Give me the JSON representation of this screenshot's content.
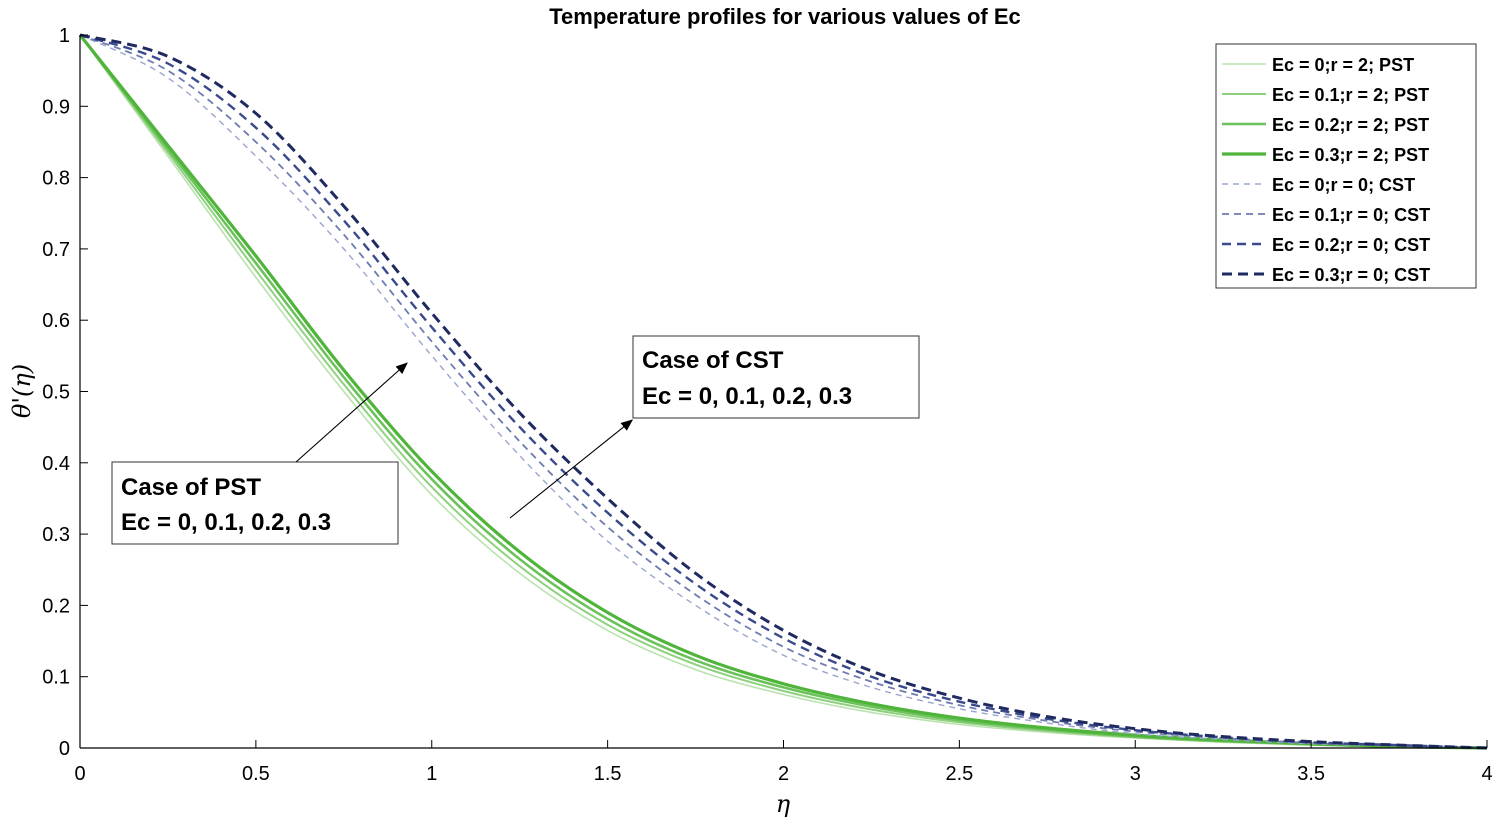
{
  "chart_data": {
    "type": "line",
    "title": "Temperature profiles for various values of Ec",
    "xlabel": "η",
    "ylabel": "θ'(η)",
    "xlim": [
      0,
      4
    ],
    "ylim": [
      0,
      1
    ],
    "xticks": [
      "0",
      "0.5",
      "1",
      "1.5",
      "2",
      "2.5",
      "3",
      "3.5",
      "4"
    ],
    "yticks": [
      "0",
      "0.1",
      "0.2",
      "0.3",
      "0.4",
      "0.5",
      "0.6",
      "0.7",
      "0.8",
      "0.9",
      "1"
    ],
    "grid": false,
    "legend_position": "top-right",
    "x": [
      0,
      0.25,
      0.5,
      0.75,
      1.0,
      1.25,
      1.5,
      1.75,
      2.0,
      2.25,
      2.5,
      2.75,
      3.0,
      3.25,
      3.5,
      3.75,
      4.0
    ],
    "series": [
      {
        "name": "Ec = 0;r = 2; PST",
        "color": "#b9e2ae",
        "style": "solid",
        "values": [
          1,
          0.83,
          0.66,
          0.5,
          0.355,
          0.245,
          0.165,
          0.11,
          0.075,
          0.05,
          0.033,
          0.022,
          0.014,
          0.008,
          0.004,
          0.002,
          0
        ]
      },
      {
        "name": "Ec = 0.1;r = 2; PST",
        "color": "#8fd07f",
        "style": "solid",
        "values": [
          1,
          0.835,
          0.67,
          0.51,
          0.366,
          0.255,
          0.173,
          0.117,
          0.08,
          0.054,
          0.036,
          0.024,
          0.015,
          0.009,
          0.005,
          0.002,
          0
        ]
      },
      {
        "name": "Ec = 0.2;r = 2; PST",
        "color": "#6cc25a",
        "style": "solid",
        "values": [
          1,
          0.84,
          0.68,
          0.52,
          0.377,
          0.265,
          0.181,
          0.123,
          0.085,
          0.058,
          0.039,
          0.026,
          0.016,
          0.01,
          0.005,
          0.002,
          0
        ]
      },
      {
        "name": "Ec = 0.3;r = 2; PST",
        "color": "#4eb43a",
        "style": "solid",
        "values": [
          1,
          0.845,
          0.69,
          0.53,
          0.388,
          0.275,
          0.19,
          0.13,
          0.09,
          0.062,
          0.042,
          0.028,
          0.018,
          0.011,
          0.006,
          0.002,
          0
        ]
      },
      {
        "name": "Ec = 0;r = 0; CST",
        "color": "#9aa5cc",
        "style": "dashed",
        "values": [
          1,
          0.94,
          0.83,
          0.7,
          0.55,
          0.41,
          0.29,
          0.2,
          0.13,
          0.085,
          0.055,
          0.035,
          0.02,
          0.012,
          0.006,
          0.003,
          0
        ]
      },
      {
        "name": "Ec = 0.1;r = 0; CST",
        "color": "#6e7bb0",
        "style": "dashed",
        "values": [
          1,
          0.95,
          0.85,
          0.72,
          0.57,
          0.43,
          0.31,
          0.215,
          0.142,
          0.093,
          0.06,
          0.038,
          0.023,
          0.014,
          0.007,
          0.003,
          0
        ]
      },
      {
        "name": "Ec = 0.2;r = 0; CST",
        "color": "#3b4a8c",
        "style": "dashed",
        "values": [
          1,
          0.96,
          0.87,
          0.74,
          0.59,
          0.45,
          0.33,
          0.23,
          0.154,
          0.1,
          0.065,
          0.041,
          0.025,
          0.015,
          0.008,
          0.004,
          0
        ]
      },
      {
        "name": "Ec = 0.3;r = 0; CST",
        "color": "#1f2a60",
        "style": "dashed",
        "values": [
          1,
          0.97,
          0.89,
          0.76,
          0.61,
          0.47,
          0.35,
          0.245,
          0.165,
          0.108,
          0.07,
          0.044,
          0.027,
          0.016,
          0.009,
          0.004,
          0
        ]
      }
    ],
    "annotations": [
      {
        "lines": [
          "Case of PST",
          "Ec = 0, 0.1, 0.2, 0.3"
        ],
        "arrow_to": [
          0.93,
          0.54
        ]
      },
      {
        "lines": [
          "Case of CST",
          "Ec = 0, 0.1, 0.2, 0.3"
        ],
        "arrow_to": [
          1.57,
          0.46
        ]
      }
    ]
  }
}
